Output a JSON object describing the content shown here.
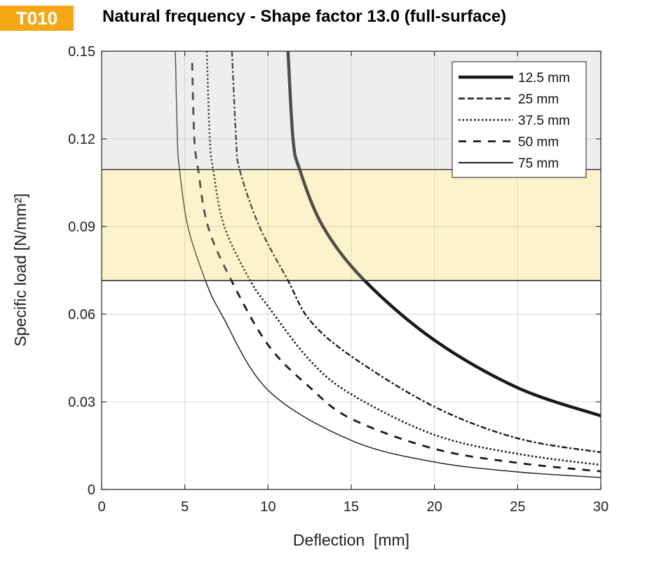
{
  "badge": "T010",
  "chart_data": {
    "type": "line",
    "title": "Natural frequency - Shape factor 13.0 (full-surface)",
    "xlabel": "Deflection  [mm]",
    "ylabel": "Specific load [N/mm²]",
    "xlim": [
      0,
      30
    ],
    "ylim": [
      0,
      0.15
    ],
    "xticks": [
      0,
      5,
      10,
      15,
      20,
      25,
      30
    ],
    "yticks": [
      0,
      0.03,
      0.06,
      0.09,
      0.12,
      0.15
    ],
    "ytick_labels": [
      "0",
      "0.03",
      "0.06",
      "0.09",
      "0.12",
      "0.15"
    ],
    "grid": true,
    "legend_position": "top-right",
    "bands": [
      {
        "name": "grey-zone",
        "y0": 0.1095,
        "y1": 0.15,
        "color": "#eeeeee"
      },
      {
        "name": "yellow-zone",
        "y0": 0.0715,
        "y1": 0.1095,
        "color": "#fdf3cc"
      }
    ],
    "series": [
      {
        "name": "12.5 mm",
        "style": "solid-thick",
        "x": [
          11.2,
          11.5,
          11.9,
          13.3,
          15.8,
          20,
          25,
          30
        ],
        "y": [
          0.15,
          0.12,
          0.1095,
          0.09,
          0.0715,
          0.0511,
          0.0348,
          0.0252
        ]
      },
      {
        "name": "25 mm",
        "style": "dashdot",
        "x": [
          7.83,
          8.08,
          8.29,
          9.48,
          11.2,
          12.5,
          15,
          20,
          25,
          30
        ],
        "y": [
          0.15,
          0.12,
          0.1095,
          0.09,
          0.0715,
          0.058,
          0.0456,
          0.0283,
          0.0175,
          0.0127
        ]
      },
      {
        "name": "37.5 mm",
        "style": "dotted",
        "x": [
          6.32,
          6.5,
          6.7,
          7.37,
          8.93,
          10,
          12.5,
          15,
          20,
          25,
          30
        ],
        "y": [
          0.15,
          0.12,
          0.1095,
          0.09,
          0.0715,
          0.0627,
          0.0443,
          0.0326,
          0.0187,
          0.0122,
          0.0084
        ]
      },
      {
        "name": "50 mm",
        "style": "dashed",
        "x": [
          5.44,
          5.57,
          5.8,
          6.39,
          7.8,
          10,
          12.5,
          15,
          20,
          25,
          30
        ],
        "y": [
          0.146,
          0.12,
          0.1095,
          0.09,
          0.0715,
          0.0495,
          0.035,
          0.0242,
          0.0139,
          0.0091,
          0.0062
        ]
      },
      {
        "name": "75 mm",
        "style": "solid-thin",
        "x": [
          4.43,
          4.55,
          4.68,
          5.18,
          6.24,
          7.2,
          10,
          15,
          20,
          25,
          30
        ],
        "y": [
          0.15,
          0.12,
          0.1095,
          0.09,
          0.0715,
          0.06,
          0.034,
          0.0168,
          0.0094,
          0.006,
          0.0041
        ]
      }
    ]
  }
}
